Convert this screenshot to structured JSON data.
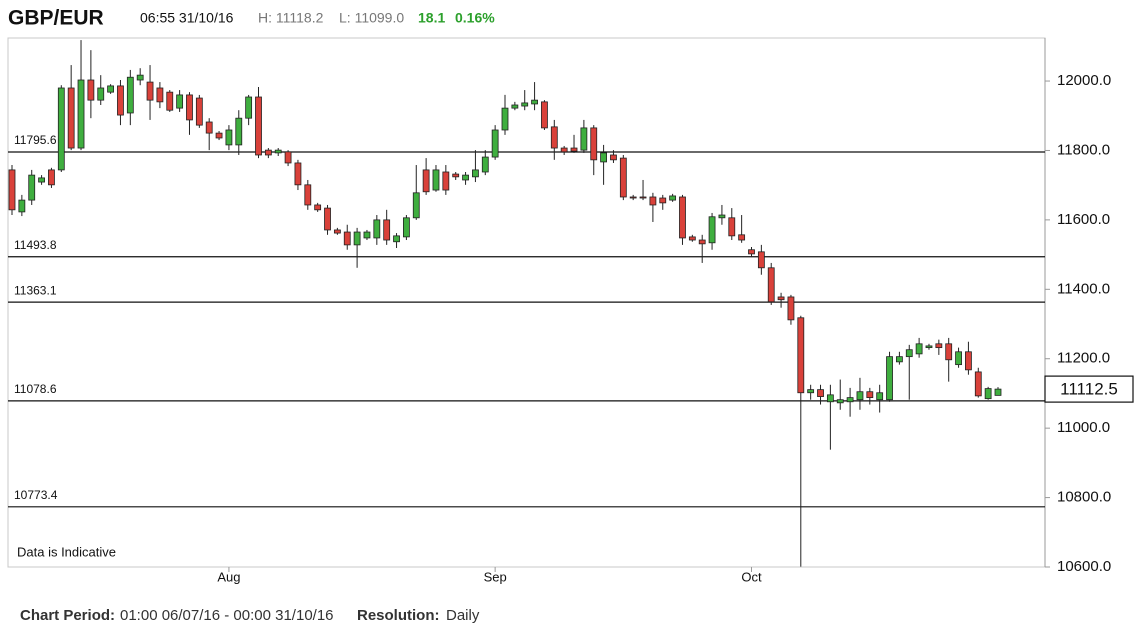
{
  "chart_data": {
    "type": "candlestick",
    "title": "GBP/EUR",
    "timestamp": "06:55 31/10/16",
    "high_text": "H: 11118.2",
    "low_text": "L: 11099.0",
    "change": "18.1",
    "change_pct": "0.16%",
    "annotation": "Data is Indicative",
    "period_label": "Chart Period:",
    "period": "01:00 06/07/16 - 00:00 31/10/16",
    "resolution_label": "Resolution:",
    "resolution": "Daily",
    "up_color": "#3fae3f",
    "down_color": "#d9413a",
    "categories": [
      null,
      null,
      null,
      null,
      null,
      null,
      null,
      null,
      null,
      null,
      null,
      null,
      null,
      null,
      null,
      null,
      null,
      null,
      null,
      null,
      null,
      null,
      "Aug",
      null,
      null,
      null,
      null,
      null,
      null,
      null,
      null,
      null,
      null,
      null,
      null,
      null,
      null,
      null,
      null,
      null,
      null,
      null,
      null,
      null,
      null,
      null,
      null,
      null,
      null,
      "Sep",
      null,
      null,
      null,
      null,
      null,
      null,
      null,
      null,
      null,
      null,
      null,
      null,
      null,
      null,
      null,
      null,
      null,
      null,
      null,
      null,
      null,
      null,
      null,
      null,
      null,
      "Oct",
      null,
      null,
      null,
      null,
      null,
      null,
      null,
      null,
      null,
      null,
      null,
      null,
      null,
      null,
      null,
      null,
      null,
      null,
      null,
      null,
      null,
      null,
      null,
      null,
      null
    ],
    "open": [
      11744,
      11623,
      11657,
      11709,
      11744,
      11744,
      11980,
      11807,
      12003,
      11945,
      11968,
      11986,
      11908,
      12003,
      11997,
      11980,
      11968,
      11922,
      11960,
      11951,
      11882,
      11850,
      11816,
      11816,
      11893,
      11954,
      11801,
      11793,
      11796,
      11764,
      11701,
      11643,
      11634,
      11571,
      11565,
      11528,
      11548,
      11548,
      11600,
      11537,
      11551,
      11606,
      11744,
      11686,
      11738,
      11732,
      11715,
      11724,
      11738,
      11781,
      11859,
      11922,
      11928,
      11934,
      11940,
      11868,
      11807,
      11807,
      11801,
      11865,
      11767,
      11787,
      11778,
      11666,
      11666,
      11666,
      11663,
      11657,
      11666,
      11551,
      11542,
      11534,
      11606,
      11606,
      11557,
      11514,
      11508,
      11462,
      11378,
      11378,
      11318,
      11102,
      11111,
      11076,
      11073,
      11076,
      11082,
      11105,
      11082,
      11082,
      11191,
      11206,
      11214,
      11232,
      11243,
      11243,
      11183,
      11220,
      11162,
      11085,
      11094.4
    ],
    "high": [
      11758,
      11672,
      11744,
      11729,
      11750,
      11988,
      12046,
      12118,
      12089,
      12017,
      11991,
      12003,
      12032,
      12037,
      12046,
      11997,
      11974,
      11974,
      11968,
      11960,
      11893,
      11856,
      11873,
      11916,
      11960,
      11983,
      11807,
      11807,
      11801,
      11773,
      11715,
      11649,
      11643,
      11577,
      11586,
      11577,
      11571,
      11614,
      11629,
      11562,
      11614,
      11758,
      11778,
      11758,
      11758,
      11738,
      11738,
      11801,
      11801,
      11873,
      11960,
      11940,
      11974,
      11997,
      11945,
      11888,
      11813,
      11845,
      11888,
      11873,
      11816,
      11801,
      11787,
      11672,
      11715,
      11678,
      11672,
      11675,
      11672,
      11557,
      11557,
      11620,
      11643,
      11634,
      11614,
      11522,
      11528,
      11476,
      11390,
      11384,
      11324,
      11125,
      11125,
      11125,
      11140,
      11116,
      11145,
      11116,
      11125,
      11220,
      11220,
      11240,
      11260,
      11243,
      11255,
      11260,
      11232,
      11249,
      11174,
      11119,
      11118.2
    ],
    "low": [
      11614,
      11611,
      11643,
      11701,
      11692,
      11738,
      11801,
      11801,
      11893,
      11931,
      11963,
      11873,
      11873,
      11988,
      11888,
      11922,
      11911,
      11911,
      11845,
      11865,
      11801,
      11830,
      11801,
      11787,
      11873,
      11778,
      11778,
      11784,
      11755,
      11686,
      11629,
      11623,
      11557,
      11557,
      11514,
      11462,
      11542,
      11528,
      11528,
      11519,
      11542,
      11600,
      11672,
      11681,
      11672,
      11715,
      11701,
      11709,
      11729,
      11773,
      11845,
      11916,
      11916,
      11916,
      11859,
      11773,
      11787,
      11793,
      11793,
      11729,
      11701,
      11764,
      11657,
      11657,
      11657,
      11594,
      11629,
      11652,
      11528,
      11537,
      11476,
      11514,
      11586,
      11542,
      11534,
      11493,
      11442,
      11355,
      11347,
      11298,
      10601,
      11082,
      11068,
      10938,
      11053,
      11033,
      11053,
      11068,
      11045,
      11076,
      11183,
      11082,
      11203,
      11226,
      11211,
      11134,
      11174,
      11154,
      11088,
      11082,
      11099
    ],
    "close": [
      11629,
      11657,
      11729,
      11721,
      11701,
      11980,
      11807,
      12003,
      11945,
      11980,
      11986,
      11902,
      12011,
      12017,
      11945,
      11940,
      11916,
      11960,
      11888,
      11873,
      11850,
      11836,
      11859,
      11893,
      11954,
      11787,
      11787,
      11801,
      11764,
      11701,
      11643,
      11629,
      11571,
      11562,
      11528,
      11565,
      11565,
      11600,
      11542,
      11554,
      11606,
      11678,
      11681,
      11744,
      11686,
      11724,
      11729,
      11744,
      11781,
      11859,
      11922,
      11931,
      11937,
      11945,
      11865,
      11807,
      11796,
      11798,
      11865,
      11773,
      11793,
      11773,
      11666,
      11663,
      11663,
      11643,
      11649,
      11669,
      11548,
      11542,
      11531,
      11609,
      11614,
      11554,
      11542,
      11502,
      11462,
      11364,
      11370,
      11312,
      11102,
      11111,
      11091,
      11096,
      11082,
      11088,
      11105,
      11088,
      11102,
      11206,
      11206,
      11226,
      11243,
      11237,
      11232,
      11197,
      11220,
      11168,
      11093,
      11114,
      11112.5
    ],
    "levels": [
      11795.6,
      11493.8,
      11363.1,
      11078.6,
      10773.4
    ],
    "last_price": 11112.5,
    "ylim": [
      10600,
      12124
    ],
    "yticks": [
      {
        "value": 10600,
        "label": "10600.0"
      },
      {
        "value": 10800,
        "label": "10800.0"
      },
      {
        "value": 11000,
        "label": "11000.0"
      },
      {
        "value": 11200,
        "label": "11200.0"
      },
      {
        "value": 11400,
        "label": "11400.0"
      },
      {
        "value": 11600,
        "label": "11600.0"
      },
      {
        "value": 11800,
        "label": "11800.0"
      },
      {
        "value": 12000,
        "label": "12000.0"
      }
    ]
  }
}
